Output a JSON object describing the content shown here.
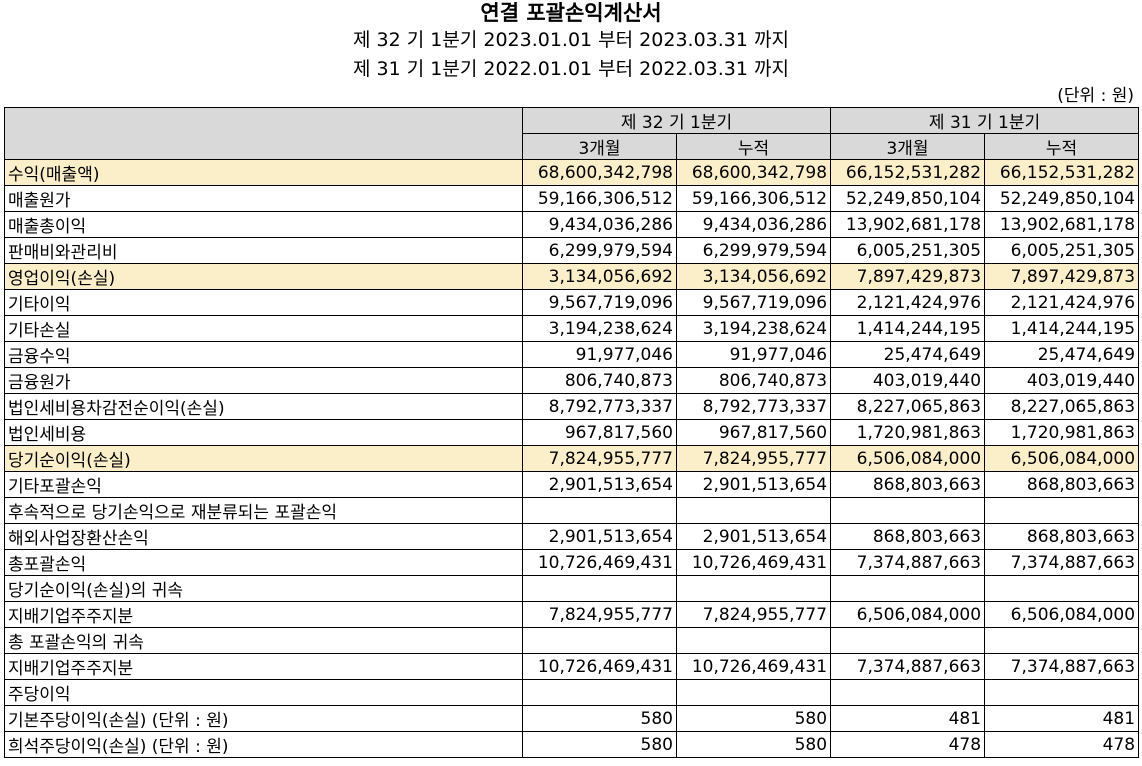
{
  "header": {
    "title": "연결 포괄손익계산서",
    "period_current": "제 32 기 1분기 2023.01.01 부터 2023.03.31 까지",
    "period_prior": "제 31 기 1분기 2022.01.01 부터 2022.03.31 까지",
    "unit": "(단위 : 원)"
  },
  "columns": {
    "group_current": "제 32 기 1분기",
    "group_prior": "제 31 기 1분기",
    "sub": [
      "3개월",
      "누적",
      "3개월",
      "누적"
    ]
  },
  "highlight_color": "#fbefc9",
  "rows": [
    {
      "label": "수익(매출액)",
      "indent": 0,
      "highlight": true,
      "values": [
        "68,600,342,798",
        "68,600,342,798",
        "66,152,531,282",
        "66,152,531,282"
      ]
    },
    {
      "label": "매출원가",
      "indent": 0,
      "highlight": false,
      "values": [
        "59,166,306,512",
        "59,166,306,512",
        "52,249,850,104",
        "52,249,850,104"
      ]
    },
    {
      "label": "매출총이익",
      "indent": 0,
      "highlight": false,
      "values": [
        "9,434,036,286",
        "9,434,036,286",
        "13,902,681,178",
        "13,902,681,178"
      ]
    },
    {
      "label": "판매비와관리비",
      "indent": 0,
      "highlight": false,
      "values": [
        "6,299,979,594",
        "6,299,979,594",
        "6,005,251,305",
        "6,005,251,305"
      ]
    },
    {
      "label": "영업이익(손실)",
      "indent": 0,
      "highlight": true,
      "values": [
        "3,134,056,692",
        "3,134,056,692",
        "7,897,429,873",
        "7,897,429,873"
      ]
    },
    {
      "label": "기타이익",
      "indent": 0,
      "highlight": false,
      "values": [
        "9,567,719,096",
        "9,567,719,096",
        "2,121,424,976",
        "2,121,424,976"
      ]
    },
    {
      "label": "기타손실",
      "indent": 0,
      "highlight": false,
      "values": [
        "3,194,238,624",
        "3,194,238,624",
        "1,414,244,195",
        "1,414,244,195"
      ]
    },
    {
      "label": "금융수익",
      "indent": 0,
      "highlight": false,
      "values": [
        "91,977,046",
        "91,977,046",
        "25,474,649",
        "25,474,649"
      ]
    },
    {
      "label": "금융원가",
      "indent": 0,
      "highlight": false,
      "values": [
        "806,740,873",
        "806,740,873",
        "403,019,440",
        "403,019,440"
      ]
    },
    {
      "label": "법인세비용차감전순이익(손실)",
      "indent": 0,
      "highlight": false,
      "values": [
        "8,792,773,337",
        "8,792,773,337",
        "8,227,065,863",
        "8,227,065,863"
      ]
    },
    {
      "label": "법인세비용",
      "indent": 0,
      "highlight": false,
      "values": [
        "967,817,560",
        "967,817,560",
        "1,720,981,863",
        "1,720,981,863"
      ]
    },
    {
      "label": "당기순이익(손실)",
      "indent": 0,
      "highlight": true,
      "values": [
        "7,824,955,777",
        "7,824,955,777",
        "6,506,084,000",
        "6,506,084,000"
      ]
    },
    {
      "label": "기타포괄손익",
      "indent": 0,
      "highlight": false,
      "values": [
        "2,901,513,654",
        "2,901,513,654",
        "868,803,663",
        "868,803,663"
      ]
    },
    {
      "label": "후속적으로 당기손익으로 재분류되는 포괄손익",
      "indent": 1,
      "highlight": false,
      "values": [
        "",
        "",
        "",
        ""
      ]
    },
    {
      "label": "해외사업장환산손익",
      "indent": 2,
      "highlight": false,
      "values": [
        "2,901,513,654",
        "2,901,513,654",
        "868,803,663",
        "868,803,663"
      ]
    },
    {
      "label": "총포괄손익",
      "indent": 0,
      "highlight": false,
      "values": [
        "10,726,469,431",
        "10,726,469,431",
        "7,374,887,663",
        "7,374,887,663"
      ]
    },
    {
      "label": "당기순이익(손실)의 귀속",
      "indent": 0,
      "highlight": false,
      "values": [
        "",
        "",
        "",
        ""
      ]
    },
    {
      "label": "지배기업주주지분",
      "indent": 3,
      "highlight": false,
      "values": [
        "7,824,955,777",
        "7,824,955,777",
        "6,506,084,000",
        "6,506,084,000"
      ]
    },
    {
      "label": "총 포괄손익의 귀속",
      "indent": 0,
      "highlight": false,
      "values": [
        "",
        "",
        "",
        ""
      ]
    },
    {
      "label": "지배기업주주지분",
      "indent": 3,
      "highlight": false,
      "values": [
        "10,726,469,431",
        "10,726,469,431",
        "7,374,887,663",
        "7,374,887,663"
      ]
    },
    {
      "label": "주당이익",
      "indent": 0,
      "highlight": false,
      "values": [
        "",
        "",
        "",
        ""
      ]
    },
    {
      "label": "기본주당이익(손실) (단위 : 원)",
      "indent": 3,
      "highlight": false,
      "values": [
        "580",
        "580",
        "481",
        "481"
      ]
    },
    {
      "label": "희석주당이익(손실) (단위 : 원)",
      "indent": 3,
      "highlight": false,
      "values": [
        "580",
        "580",
        "478",
        "478"
      ]
    }
  ]
}
